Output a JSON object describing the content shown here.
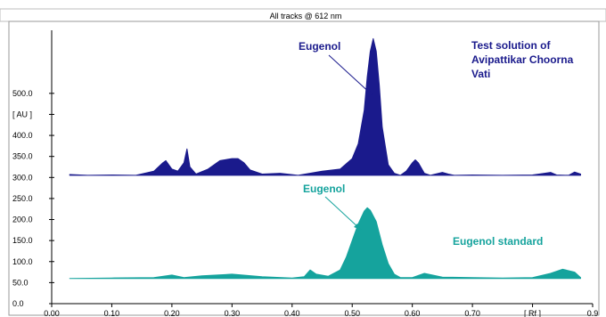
{
  "chart_data": {
    "type": "area",
    "title": "All tracks @ 612 nm",
    "xlabel": "[ Rf ]",
    "ylabel": "[ AU ]",
    "xlim": [
      0.0,
      0.9
    ],
    "ylim": [
      0.0,
      650.0
    ],
    "x_ticks": [
      "0.00",
      "0.10",
      "0.20",
      "0.30",
      "0.40",
      "0.50",
      "0.60",
      "0.70",
      "[ Rf ]",
      "0.9"
    ],
    "x_tick_values": [
      0.0,
      0.1,
      0.2,
      0.3,
      0.4,
      0.5,
      0.6,
      0.7,
      0.8,
      0.9
    ],
    "y_ticks": [
      "0.0",
      "50.0",
      "100.0",
      "150.0",
      "200.0",
      "250.0",
      "300.0",
      "350.0",
      "400.0",
      "[ AU ]",
      "500.0"
    ],
    "y_tick_values": [
      0,
      50,
      100,
      150,
      200,
      250,
      300,
      350,
      400,
      450,
      500
    ],
    "grid": false,
    "legend": "none",
    "series": [
      {
        "name": "Test solution of Avipattikar Choorna Vati",
        "color": "#1a1a8c",
        "x": [
          0.03,
          0.06,
          0.1,
          0.14,
          0.17,
          0.185,
          0.19,
          0.2,
          0.21,
          0.22,
          0.225,
          0.23,
          0.24,
          0.26,
          0.28,
          0.3,
          0.31,
          0.32,
          0.33,
          0.35,
          0.38,
          0.41,
          0.45,
          0.48,
          0.5,
          0.51,
          0.52,
          0.525,
          0.53,
          0.535,
          0.54,
          0.545,
          0.55,
          0.56,
          0.57,
          0.58,
          0.59,
          0.6,
          0.605,
          0.61,
          0.62,
          0.63,
          0.65,
          0.66,
          0.67,
          0.7,
          0.75,
          0.8,
          0.82,
          0.83,
          0.84,
          0.86,
          0.87,
          0.88
        ],
        "y": [
          307,
          305,
          306,
          305,
          315,
          335,
          340,
          320,
          315,
          335,
          368,
          325,
          308,
          320,
          340,
          345,
          345,
          335,
          318,
          308,
          310,
          305,
          315,
          320,
          345,
          380,
          460,
          540,
          600,
          630,
          600,
          520,
          420,
          330,
          310,
          305,
          315,
          335,
          342,
          335,
          310,
          305,
          312,
          308,
          305,
          306,
          305,
          306,
          310,
          312,
          306,
          305,
          313,
          308
        ]
      },
      {
        "name": "Eugenol standard",
        "color": "#15a39d",
        "x": [
          0.03,
          0.1,
          0.17,
          0.2,
          0.22,
          0.25,
          0.3,
          0.35,
          0.4,
          0.42,
          0.43,
          0.44,
          0.46,
          0.48,
          0.49,
          0.5,
          0.51,
          0.52,
          0.525,
          0.53,
          0.54,
          0.55,
          0.56,
          0.57,
          0.58,
          0.6,
          0.62,
          0.65,
          0.7,
          0.75,
          0.8,
          0.83,
          0.85,
          0.87,
          0.88
        ],
        "y": [
          60,
          61,
          62,
          68,
          62,
          66,
          70,
          64,
          61,
          64,
          80,
          70,
          65,
          80,
          110,
          150,
          190,
          220,
          228,
          222,
          195,
          140,
          95,
          70,
          62,
          62,
          72,
          63,
          62,
          61,
          62,
          72,
          82,
          75,
          62
        ]
      }
    ],
    "annotations": [
      {
        "text": "Eugenol",
        "color": "#1a1a8c"
      },
      {
        "text": "Test solution of",
        "color": "#1a1a8c"
      },
      {
        "text": "Avipattikar Choorna",
        "color": "#1a1a8c"
      },
      {
        "text": "Vati",
        "color": "#1a1a8c"
      },
      {
        "text": "Eugenol",
        "color": "#15a39d"
      },
      {
        "text": "Eugenol standard",
        "color": "#15a39d"
      }
    ]
  }
}
